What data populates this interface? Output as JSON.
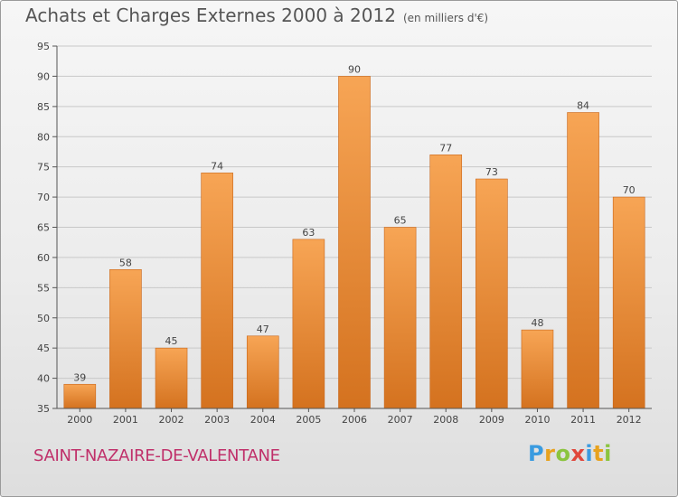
{
  "title": "Achats et Charges Externes 2000 à 2012",
  "subtitle": "(en milliers d'€)",
  "place": "SAINT-NAZAIRE-DE-VALENTANE",
  "logo": {
    "parts": [
      "P",
      "r",
      "o",
      "x",
      "i",
      "t",
      "i"
    ]
  },
  "colors": {
    "bar_light": "#f7a555",
    "bar_dark": "#d4721f",
    "place": "#c0306a"
  },
  "chart_data": {
    "type": "bar",
    "categories": [
      "2000",
      "2001",
      "2002",
      "2003",
      "2004",
      "2005",
      "2006",
      "2007",
      "2008",
      "2009",
      "2010",
      "2011",
      "2012"
    ],
    "values": [
      39,
      58,
      45,
      74,
      47,
      63,
      90,
      65,
      77,
      73,
      48,
      84,
      70
    ],
    "ylim": [
      35,
      95
    ],
    "yticks": [
      35,
      40,
      45,
      50,
      55,
      60,
      65,
      70,
      75,
      80,
      85,
      90,
      95
    ],
    "grid": true
  }
}
